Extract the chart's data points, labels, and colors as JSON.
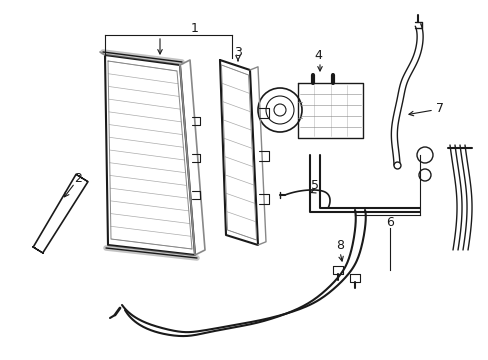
{
  "background_color": "#ffffff",
  "line_color": "#1a1a1a",
  "fig_width": 4.89,
  "fig_height": 3.6,
  "dpi": 100,
  "gray": "#888888",
  "darkgray": "#555555"
}
